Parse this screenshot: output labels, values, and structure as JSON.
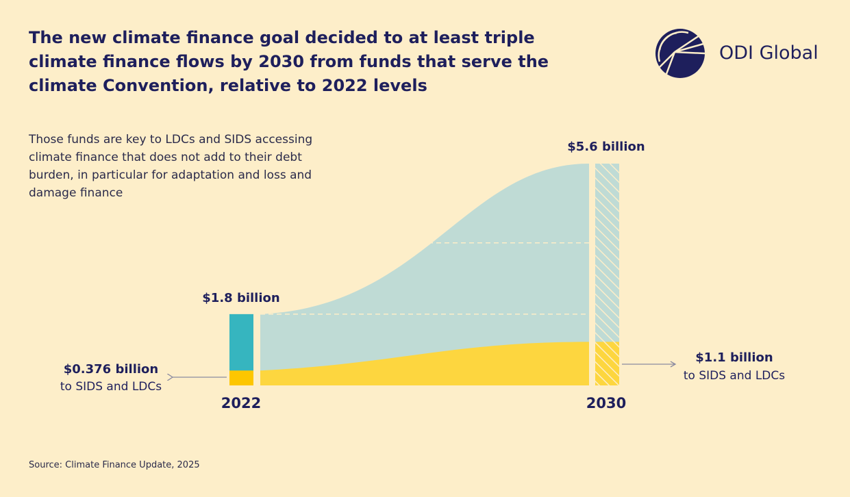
{
  "chart_data": {
    "type": "flow",
    "title": "The new climate finance goal decided to at least triple climate finance flows by 2030 from funds that serve the climate Convention, relative to 2022 levels",
    "subtitle": "Those funds are key to LDCs and SIDS accessing climate finance that does not add to their debt burden, in particular for adaptation and loss and damage finance",
    "source": "Source: Climate Finance Update, 2025",
    "brand": "ODI Global",
    "categories": [
      "2022",
      "2030"
    ],
    "totals": {
      "values": [
        1.8,
        5.6
      ],
      "value_labels": [
        "$1.8 billion",
        "$5.6 billion"
      ],
      "color": "#36b5bf",
      "flow_color": "#bfdbd5"
    },
    "sids": {
      "name": "to SIDS and LDCs",
      "values": [
        0.376,
        1.1
      ],
      "value_labels": [
        "$0.376 billion",
        "$1.1 billion"
      ],
      "color": "#fdc600",
      "flow_color": "#fdd63f"
    }
  }
}
